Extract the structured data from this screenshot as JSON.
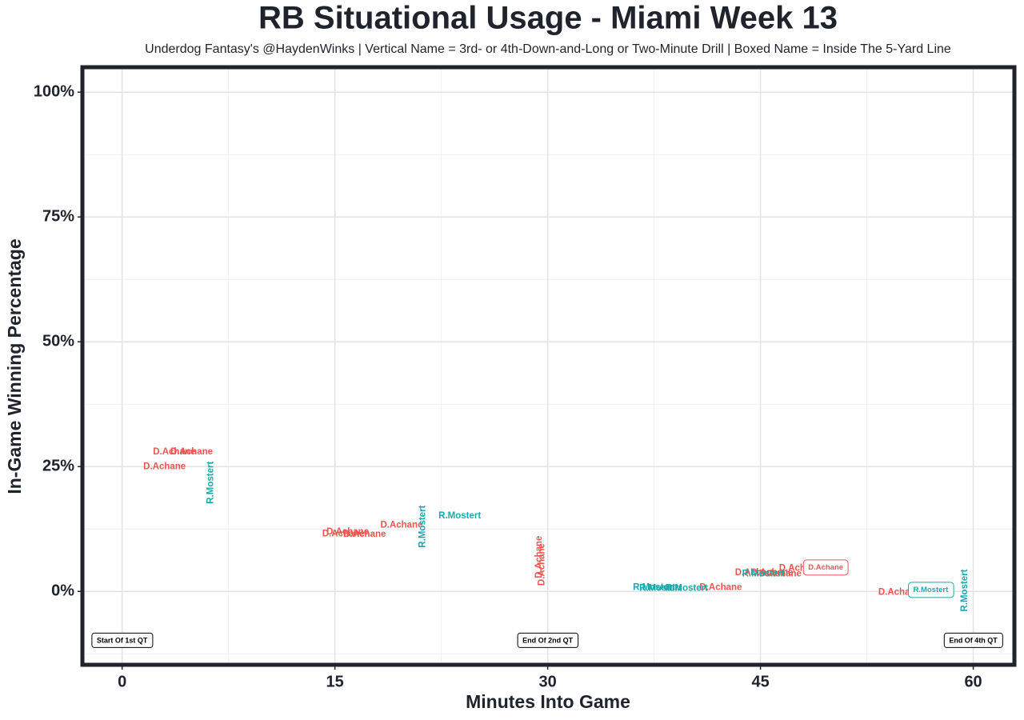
{
  "chart_data": {
    "type": "scatter",
    "title": "RB Situational Usage - Miami Week 13",
    "subtitle": "Underdog Fantasy's @HaydenWinks | Vertical Name = 3rd- or 4th-Down-and-Long or Two-Minute Drill | Boxed Name = Inside The 5-Yard Line",
    "x_label": "Minutes Into Game",
    "y_label": "In-Game Winning Percentage",
    "xlim": [
      -2.8,
      62.9
    ],
    "ylim": [
      -14.7,
      105
    ],
    "xticks": [
      0,
      15,
      30,
      45,
      60
    ],
    "yticks": [
      {
        "value": 0,
        "label": "0%"
      },
      {
        "value": 25,
        "label": "25%"
      },
      {
        "value": 50,
        "label": "50%"
      },
      {
        "value": 75,
        "label": "75%"
      },
      {
        "value": 100,
        "label": "100%"
      }
    ],
    "x_minor_ticks": [
      7.5,
      22.5,
      37.5,
      52.5
    ],
    "y_minor_ticks": [
      -12.5,
      12.5,
      37.5,
      62.5,
      87.5
    ],
    "grid": true,
    "series": [
      {
        "name": "D.Achane",
        "color": "#ee5550",
        "x": [
          3.67,
          4.9,
          2.99,
          15.9,
          15.6,
          17.1,
          19.7,
          29.4,
          29.6,
          42.2,
          44.7,
          45.8,
          46.4,
          47.8,
          49.6,
          54.8
        ],
        "values": [
          27.9,
          27.9,
          25.0,
          11.9,
          11.5,
          11.4,
          13.3,
          6.9,
          5.4,
          0.8,
          3.7,
          3.7,
          3.5,
          4.6,
          4.8,
          -0.2
        ],
        "vertical": [
          false,
          false,
          false,
          false,
          false,
          false,
          false,
          true,
          true,
          false,
          false,
          false,
          false,
          false,
          false,
          false
        ],
        "boxed": [
          false,
          false,
          false,
          false,
          false,
          false,
          false,
          false,
          false,
          false,
          false,
          false,
          false,
          false,
          true,
          false
        ]
      },
      {
        "name": "R.Mostert",
        "color": "#17a9ad",
        "x": [
          6.26,
          21.2,
          23.8,
          37.5,
          37.95,
          39.8,
          45.2,
          57.0,
          59.4
        ],
        "values": [
          21.8,
          13.0,
          15.1,
          0.8,
          0.6,
          0.6,
          3.5,
          0.3,
          0.2
        ],
        "vertical": [
          true,
          true,
          false,
          false,
          false,
          false,
          false,
          false,
          true
        ],
        "boxed": [
          false,
          false,
          false,
          false,
          false,
          false,
          false,
          true,
          false
        ]
      }
    ],
    "annotations": [
      {
        "text": "Start Of 1st QT",
        "x": 0,
        "y": -9.9
      },
      {
        "text": "End Of 2nd QT",
        "x": 30,
        "y": -9.9
      },
      {
        "text": "End Of 4th QT",
        "x": 60,
        "y": -9.9
      }
    ]
  }
}
